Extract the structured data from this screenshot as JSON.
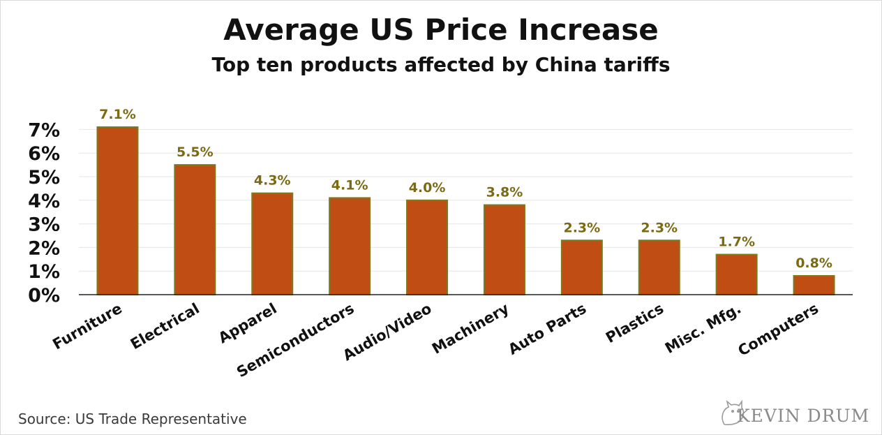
{
  "chart_data": {
    "type": "bar",
    "title": "Average US Price Increase",
    "subtitle": "Top ten products affected by China tariffs",
    "categories": [
      "Furniture",
      "Electrical",
      "Apparel",
      "Semiconductors",
      "Audio/Video",
      "Machinery",
      "Auto Parts",
      "Plastics",
      "Misc. Mfg.",
      "Computers"
    ],
    "values": [
      7.1,
      5.5,
      4.3,
      4.1,
      4.0,
      3.8,
      2.3,
      2.3,
      1.7,
      0.8
    ],
    "data_labels": [
      "7.1%",
      "5.5%",
      "4.3%",
      "4.1%",
      "4.0%",
      "3.8%",
      "2.3%",
      "2.3%",
      "1.7%",
      "0.8%"
    ],
    "yticks": [
      0,
      1,
      2,
      3,
      4,
      5,
      6,
      7
    ],
    "ytick_labels": [
      "0%",
      "1%",
      "2%",
      "3%",
      "4%",
      "5%",
      "6%",
      "7%"
    ],
    "ylim": [
      0,
      7.1
    ],
    "grid": true,
    "colors": {
      "bar": "#c04e14",
      "bar_edge": "#7c7a1e",
      "label": "#7b6a14",
      "grid": "#e6e6e6"
    }
  },
  "footer": {
    "source": "Source: US Trade Representative",
    "logo_text": "KEVIN DRUM"
  }
}
